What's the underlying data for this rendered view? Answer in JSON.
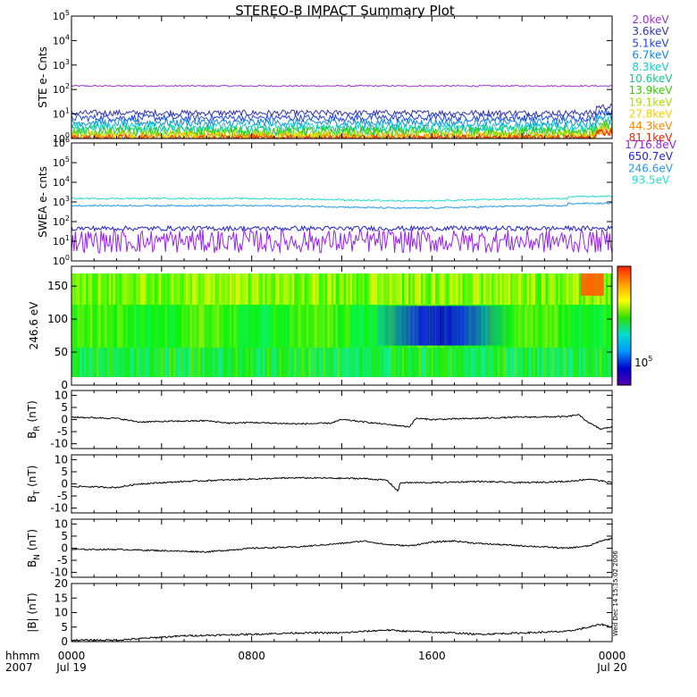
{
  "title": "STEREO-B IMPACT Summary Plot",
  "chart_data": [
    {
      "id": "ste",
      "type": "line",
      "ylabel": "STE e- Cnts",
      "yscale": "log",
      "ylim": [
        1,
        100000
      ],
      "yticks": [
        {
          "v": 1,
          "e": "0"
        },
        {
          "v": 10,
          "e": "1"
        },
        {
          "v": 100,
          "e": "2"
        },
        {
          "v": 1000,
          "e": "3"
        },
        {
          "v": 10000,
          "e": "4"
        },
        {
          "v": 100000,
          "e": "5"
        }
      ],
      "series": [
        {
          "name": "2.0keV",
          "color": "#9933cc",
          "level": 140,
          "noise": 0.03
        },
        {
          "name": "3.6keV",
          "color": "#3333aa",
          "level": 11,
          "noise": 0.12
        },
        {
          "name": "5.1keV",
          "color": "#2244dd",
          "level": 7,
          "noise": 0.14
        },
        {
          "name": "6.7keV",
          "color": "#1188dd",
          "level": 4.5,
          "noise": 0.16
        },
        {
          "name": "8.3keV",
          "color": "#11cccc",
          "level": 3,
          "noise": 0.18
        },
        {
          "name": "10.6keV",
          "color": "#11cc88",
          "level": 2.2,
          "noise": 0.2
        },
        {
          "name": "13.9keV",
          "color": "#33cc00",
          "level": 1.7,
          "noise": 0.22
        },
        {
          "name": "19.1keV",
          "color": "#aadd00",
          "level": 1.35,
          "noise": 0.22
        },
        {
          "name": "27.8keV",
          "color": "#ffcc00",
          "level": 1.15,
          "noise": 0.2
        },
        {
          "name": "44.3keV",
          "color": "#ff8800",
          "level": 1.05,
          "noise": 0.18
        },
        {
          "name": "81.1keV",
          "color": "#ee2200",
          "level": 1.0,
          "noise": 0.15
        }
      ]
    },
    {
      "id": "swea",
      "type": "line",
      "ylabel": "SWEA e- cnts",
      "yscale": "log",
      "ylim": [
        1,
        1000000
      ],
      "yticks": [
        {
          "v": 1,
          "e": "0"
        },
        {
          "v": 10,
          "e": "1"
        },
        {
          "v": 100,
          "e": "2"
        },
        {
          "v": 1000,
          "e": "3"
        },
        {
          "v": 10000,
          "e": "4"
        },
        {
          "v": 100000,
          "e": "5"
        },
        {
          "v": 1000000,
          "e": "6"
        }
      ],
      "series": [
        {
          "name": "1716.8eV",
          "color": "#9922ee",
          "level": 10,
          "noise": 0.6
        },
        {
          "name": "650.7eV",
          "color": "#2222cc",
          "level": 45,
          "noise": 0.12
        },
        {
          "name": "246.6eV",
          "color": "#2299ee",
          "level": 650,
          "noise": 0.04
        },
        {
          "name": "93.5eV",
          "color": "#22ddcc",
          "level": 1500,
          "noise": 0.04
        }
      ]
    },
    {
      "id": "pad",
      "type": "heatmap",
      "ylabel": "246.6 eV",
      "ylim": [
        0,
        180
      ],
      "yticks": [
        0,
        50,
        100,
        150
      ],
      "colorbar_label": "10",
      "colorbar_exp": "5"
    },
    {
      "id": "br",
      "type": "line",
      "ylabel": "B",
      "ylabel_sub": "R",
      "ylabel_unit": " (nT)",
      "ylim": [
        -12,
        12
      ],
      "yticks": [
        -10,
        -5,
        0,
        5,
        10
      ],
      "trace": [
        [
          0,
          1
        ],
        [
          2,
          0.5
        ],
        [
          3,
          -1
        ],
        [
          4,
          -0.8
        ],
        [
          6,
          -0.5
        ],
        [
          7,
          -1.5
        ],
        [
          8,
          -1.2
        ],
        [
          10,
          -1.8
        ],
        [
          11.5,
          -1.5
        ],
        [
          12,
          0
        ],
        [
          13,
          -1
        ],
        [
          14,
          -2
        ],
        [
          15,
          -3
        ],
        [
          15.3,
          0.5
        ],
        [
          16,
          0
        ],
        [
          18,
          0.5
        ],
        [
          20,
          1
        ],
        [
          22,
          1.2
        ],
        [
          22.5,
          2
        ],
        [
          23,
          -1.5
        ],
        [
          23.5,
          -4
        ],
        [
          24,
          -3
        ]
      ]
    },
    {
      "id": "bt",
      "type": "line",
      "ylabel": "B",
      "ylabel_sub": "T",
      "ylabel_unit": " (nT)",
      "ylim": [
        -12,
        12
      ],
      "yticks": [
        -10,
        -5,
        0,
        5,
        10
      ],
      "trace": [
        [
          0,
          -1
        ],
        [
          2,
          -1.5
        ],
        [
          3,
          0
        ],
        [
          5,
          1
        ],
        [
          8,
          2
        ],
        [
          10,
          2.5
        ],
        [
          13,
          2.2
        ],
        [
          14,
          1.5
        ],
        [
          14.5,
          -3
        ],
        [
          14.6,
          0.5
        ],
        [
          16,
          0.5
        ],
        [
          18,
          1
        ],
        [
          20,
          0.5
        ],
        [
          22,
          1
        ],
        [
          23,
          2
        ],
        [
          24,
          0.5
        ]
      ]
    },
    {
      "id": "bn",
      "type": "line",
      "ylabel": "B",
      "ylabel_sub": "N",
      "ylabel_unit": " (nT)",
      "ylim": [
        -12,
        12
      ],
      "yticks": [
        -10,
        -5,
        0,
        5,
        10
      ],
      "trace": [
        [
          0,
          -0.5
        ],
        [
          2,
          -0.5
        ],
        [
          4,
          -1
        ],
        [
          6,
          -1.5
        ],
        [
          8,
          0
        ],
        [
          10,
          0.5
        ],
        [
          12,
          2
        ],
        [
          13,
          3
        ],
        [
          14,
          1.5
        ],
        [
          15,
          1
        ],
        [
          16,
          2.5
        ],
        [
          17,
          3
        ],
        [
          18,
          2
        ],
        [
          20,
          1
        ],
        [
          22,
          0
        ],
        [
          23,
          1
        ],
        [
          23.5,
          3
        ],
        [
          24,
          4
        ]
      ]
    },
    {
      "id": "bmag",
      "type": "line",
      "ylabel": "|B| (nT)",
      "ylim": [
        0,
        20
      ],
      "yticks": [
        0,
        5,
        10,
        15,
        20
      ],
      "trace": [
        [
          0,
          0.5
        ],
        [
          2,
          0.5
        ],
        [
          3,
          1
        ],
        [
          5,
          2
        ],
        [
          8,
          2.5
        ],
        [
          10,
          3
        ],
        [
          12,
          3
        ],
        [
          13,
          3.5
        ],
        [
          14,
          4
        ],
        [
          15,
          3.5
        ],
        [
          17,
          3
        ],
        [
          18,
          2.5
        ],
        [
          20,
          3
        ],
        [
          22,
          3.5
        ],
        [
          23,
          5
        ],
        [
          23.5,
          6
        ],
        [
          24,
          5
        ]
      ]
    }
  ],
  "x_axis": {
    "header": "hhmm",
    "year": "2007",
    "ticks": [
      {
        "hour": 0,
        "label": "0000",
        "date": "Jul 19"
      },
      {
        "hour": 8,
        "label": "0800",
        "date": ""
      },
      {
        "hour": 16,
        "label": "1600",
        "date": ""
      },
      {
        "hour": 24,
        "label": "0000",
        "date": "Jul 20"
      }
    ]
  },
  "stamp": "Wed Dec 14 15:35:02 2006"
}
